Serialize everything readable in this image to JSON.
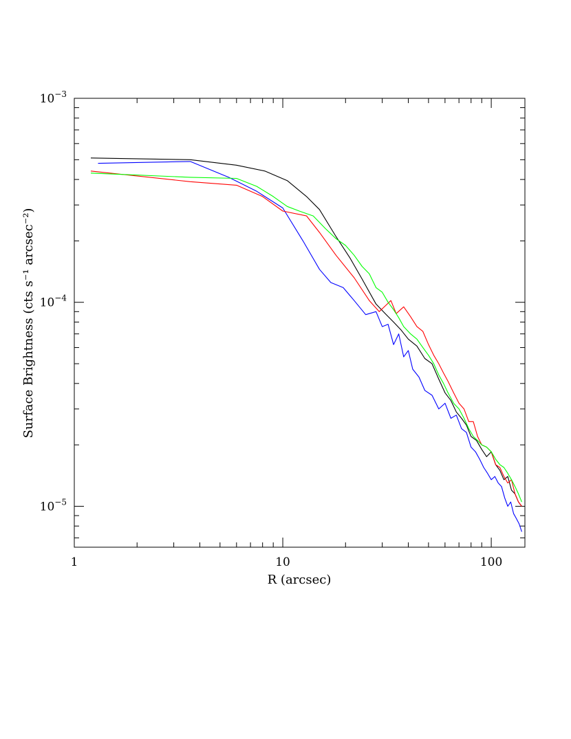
{
  "chart_data": {
    "type": "line",
    "title": "",
    "xlabel": "R (arcsec)",
    "ylabel": "Surface Brightness (cts s⁻¹ arcsec⁻²)",
    "xscale": "log",
    "yscale": "log",
    "xlim": [
      1,
      145
    ],
    "ylim": [
      6.3e-06,
      0.001
    ],
    "grid": false,
    "legend": "none",
    "x_tick_labels": [
      {
        "value": 1,
        "label": "1"
      },
      {
        "value": 10,
        "label": "10"
      },
      {
        "value": 100,
        "label": "100"
      }
    ],
    "y_tick_labels": [
      {
        "value": 0.001,
        "base": "10",
        "exp": "−3"
      },
      {
        "value": 0.0001,
        "base": "10",
        "exp": "−4"
      },
      {
        "value": 1e-05,
        "base": "10",
        "exp": "−5"
      }
    ],
    "series": [
      {
        "color": "#000000",
        "x": [
          1.2,
          3.6,
          6.0,
          8.2,
          10.5,
          13.0,
          15.0,
          18.0,
          21.0,
          24.0,
          28.0,
          31.0,
          34.0,
          37.0,
          40.0,
          44.0,
          48.0,
          52.0,
          56.0,
          60.0,
          64.0,
          68.0,
          72.0,
          76.0,
          80.0,
          85.0,
          90.0,
          95.0,
          100.0,
          105.0,
          110.0,
          115.0,
          120.0,
          125.0,
          130.0,
          135.0,
          140.0
        ],
        "y": [
          0.00051,
          0.0005,
          0.00047,
          0.00044,
          0.000395,
          0.00033,
          0.000285,
          0.00021,
          0.000165,
          0.00013,
          9.8e-05,
          8.8e-05,
          8e-05,
          7.3e-05,
          6.6e-05,
          6.1e-05,
          5.3e-05,
          5e-05,
          4.2e-05,
          3.6e-05,
          3.3e-05,
          2.9e-05,
          2.7e-05,
          2.5e-05,
          2.2e-05,
          2.1e-05,
          1.9e-05,
          1.75e-05,
          1.85e-05,
          1.6e-05,
          1.5e-05,
          1.35e-05,
          1.4e-05,
          1.2e-05,
          1.15e-05,
          1.05e-05,
          1e-05
        ]
      },
      {
        "color": "#0000ff",
        "x": [
          1.3,
          3.6,
          5.5,
          7.5,
          10.0,
          12.5,
          15.0,
          17.0,
          19.5,
          22.0,
          25.0,
          28.0,
          30.0,
          32.0,
          34.0,
          36.0,
          38.0,
          40.0,
          42.0,
          45.0,
          48.0,
          52.0,
          56.0,
          60.0,
          64.0,
          68.0,
          72.0,
          76.0,
          80.0,
          84.0,
          88.0,
          92.0,
          96.0,
          100.0,
          104.0,
          108.0,
          112.0,
          116.0,
          120.0,
          124.0,
          128.0,
          132.0,
          136.0,
          140.0
        ],
        "y": [
          0.00048,
          0.00049,
          0.00041,
          0.00035,
          0.00029,
          0.0002,
          0.000145,
          0.000125,
          0.000118,
          0.000102,
          8.7e-05,
          9e-05,
          7.6e-05,
          7.8e-05,
          6.2e-05,
          7e-05,
          5.4e-05,
          5.8e-05,
          4.7e-05,
          4.3e-05,
          3.7e-05,
          3.5e-05,
          3e-05,
          3.2e-05,
          2.7e-05,
          2.8e-05,
          2.4e-05,
          2.3e-05,
          1.95e-05,
          1.85e-05,
          1.7e-05,
          1.55e-05,
          1.45e-05,
          1.35e-05,
          1.4e-05,
          1.3e-05,
          1.25e-05,
          1.1e-05,
          1e-05,
          1.05e-05,
          9.2e-06,
          8.7e-06,
          8.2e-06,
          7.5e-06
        ]
      },
      {
        "color": "#ff0000",
        "x": [
          1.2,
          3.6,
          6.0,
          8.0,
          10.0,
          13.0,
          15.0,
          18.0,
          22.0,
          26.0,
          29.0,
          31.0,
          33.0,
          35.0,
          38.0,
          41.0,
          44.0,
          47.0,
          50.0,
          53.0,
          56.0,
          59.0,
          62.0,
          66.0,
          70.0,
          74.0,
          78.0,
          82.0,
          86.0,
          90.0,
          95.0,
          100.0,
          105.0,
          110.0,
          115.0,
          120.0,
          125.0,
          130.0,
          135.0,
          140.0
        ],
        "y": [
          0.00044,
          0.00039,
          0.000375,
          0.00033,
          0.00028,
          0.000265,
          0.00022,
          0.00017,
          0.000132,
          0.000102,
          9e-05,
          9.6e-05,
          0.000102,
          8.8e-05,
          9.5e-05,
          8.5e-05,
          7.6e-05,
          7.2e-05,
          6.2e-05,
          5.5e-05,
          5e-05,
          4.5e-05,
          4.1e-05,
          3.6e-05,
          3.2e-05,
          3e-05,
          2.6e-05,
          2.6e-05,
          2.2e-05,
          2e-05,
          1.95e-05,
          1.85e-05,
          1.6e-05,
          1.55e-05,
          1.4e-05,
          1.3e-05,
          1.35e-05,
          1.15e-05,
          1.05e-05,
          1e-05
        ]
      },
      {
        "color": "#00ff00",
        "x": [
          1.2,
          3.6,
          6.0,
          7.5,
          9.0,
          10.5,
          12.0,
          14.0,
          16.0,
          18.0,
          20.0,
          22.0,
          24.0,
          26.0,
          28.0,
          30.0,
          32.0,
          34.0,
          36.0,
          38.0,
          41.0,
          44.0,
          47.0,
          50.0,
          53.0,
          56.0,
          59.0,
          62.0,
          66.0,
          70.0,
          74.0,
          78.0,
          82.0,
          86.0,
          90.0,
          95.0,
          100.0,
          105.0,
          110.0,
          115.0,
          120.0,
          125.0,
          130.0,
          135.0,
          140.0
        ],
        "y": [
          0.00043,
          0.00041,
          0.000405,
          0.00037,
          0.00033,
          0.000295,
          0.00028,
          0.000265,
          0.00023,
          0.000205,
          0.00019,
          0.00017,
          0.00015,
          0.000138,
          0.000118,
          0.000112,
          0.0001,
          9.2e-05,
          8.4e-05,
          7.6e-05,
          7e-05,
          6.6e-05,
          6e-05,
          5.5e-05,
          5e-05,
          4.4e-05,
          4e-05,
          3.6e-05,
          3.2e-05,
          3e-05,
          2.7e-05,
          2.4e-05,
          2.2e-05,
          2.1e-05,
          2e-05,
          1.95e-05,
          1.85e-05,
          1.7e-05,
          1.6e-05,
          1.55e-05,
          1.45e-05,
          1.35e-05,
          1.25e-05,
          1.15e-05,
          1.05e-05
        ]
      }
    ]
  }
}
